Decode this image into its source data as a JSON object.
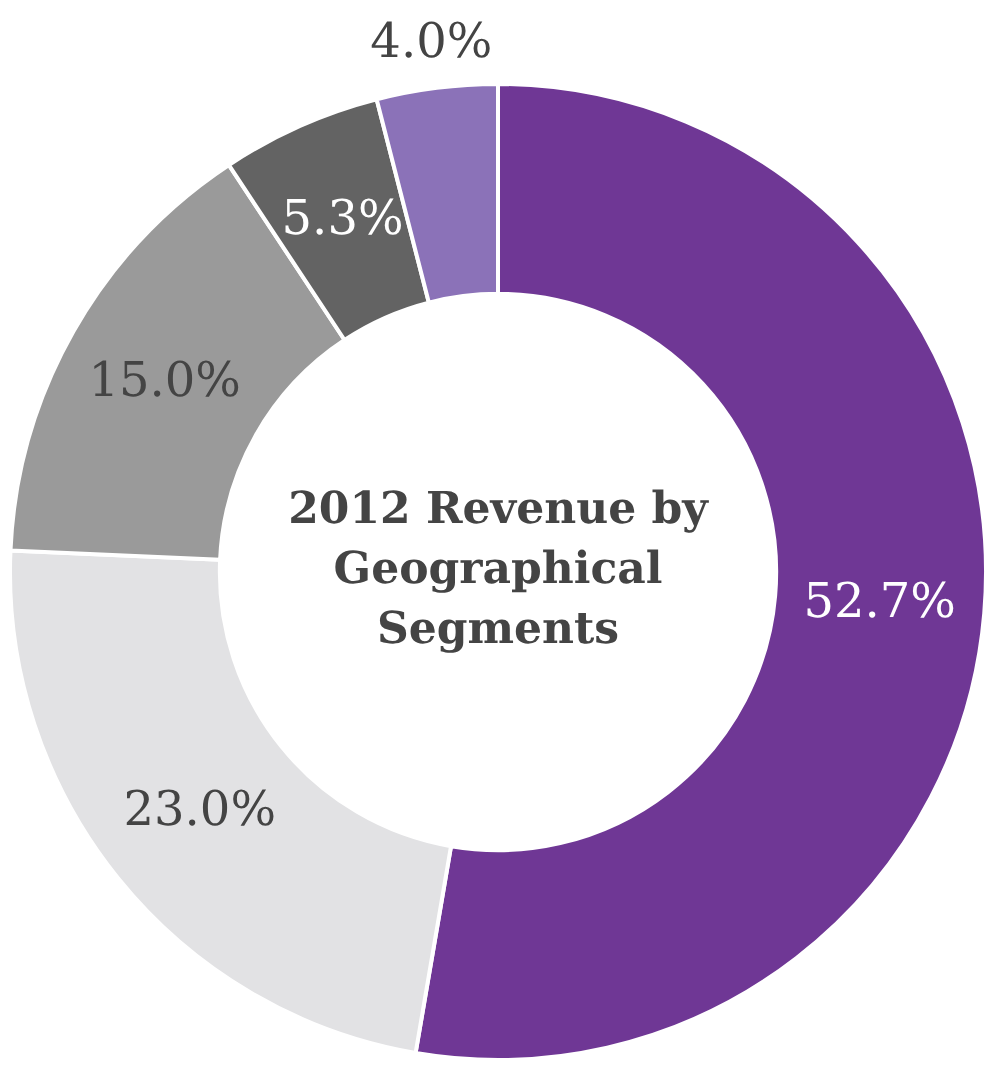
{
  "chart_data": {
    "type": "donut",
    "title": "2012 Revenue by Geographical Segments",
    "categories": [
      null,
      null,
      null,
      null,
      null
    ],
    "values": [
      52.7,
      23.0,
      15.0,
      5.3,
      4.0
    ],
    "colors": [
      "#6f3795",
      "#e2e2e4",
      "#9a9a9a",
      "#636363",
      "#8b72b8"
    ],
    "value_labels": [
      "52.7%",
      "23.0%",
      "15.0%",
      "5.3%",
      "4.0%"
    ],
    "legend": false
  }
}
